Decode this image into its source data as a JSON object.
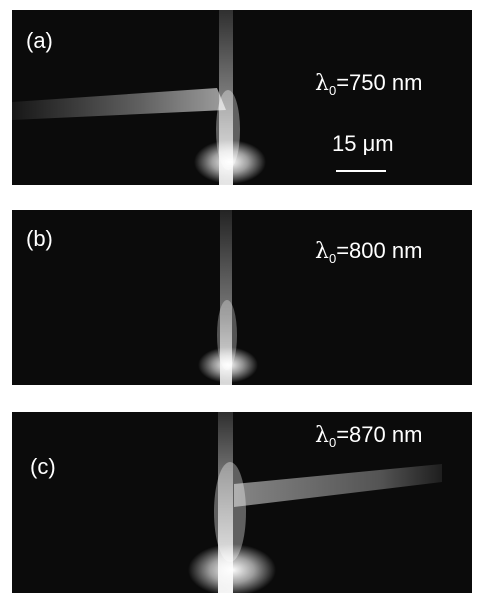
{
  "panels": [
    {
      "label": "(a)",
      "lambda_symbol": "λ",
      "lambda_subscript": "0",
      "wavelength_text": "=750 nm"
    },
    {
      "label": "(b)",
      "lambda_symbol": "λ",
      "lambda_subscript": "0",
      "wavelength_text": "=800 nm"
    },
    {
      "label": "(c)",
      "lambda_symbol": "λ",
      "lambda_subscript": "0",
      "wavelength_text": "=870 nm"
    }
  ],
  "scale_bar": {
    "text": "15 μm"
  },
  "colors": {
    "background": "#0b0b0b",
    "beam": "#ffffff",
    "page": "#ffffff"
  }
}
